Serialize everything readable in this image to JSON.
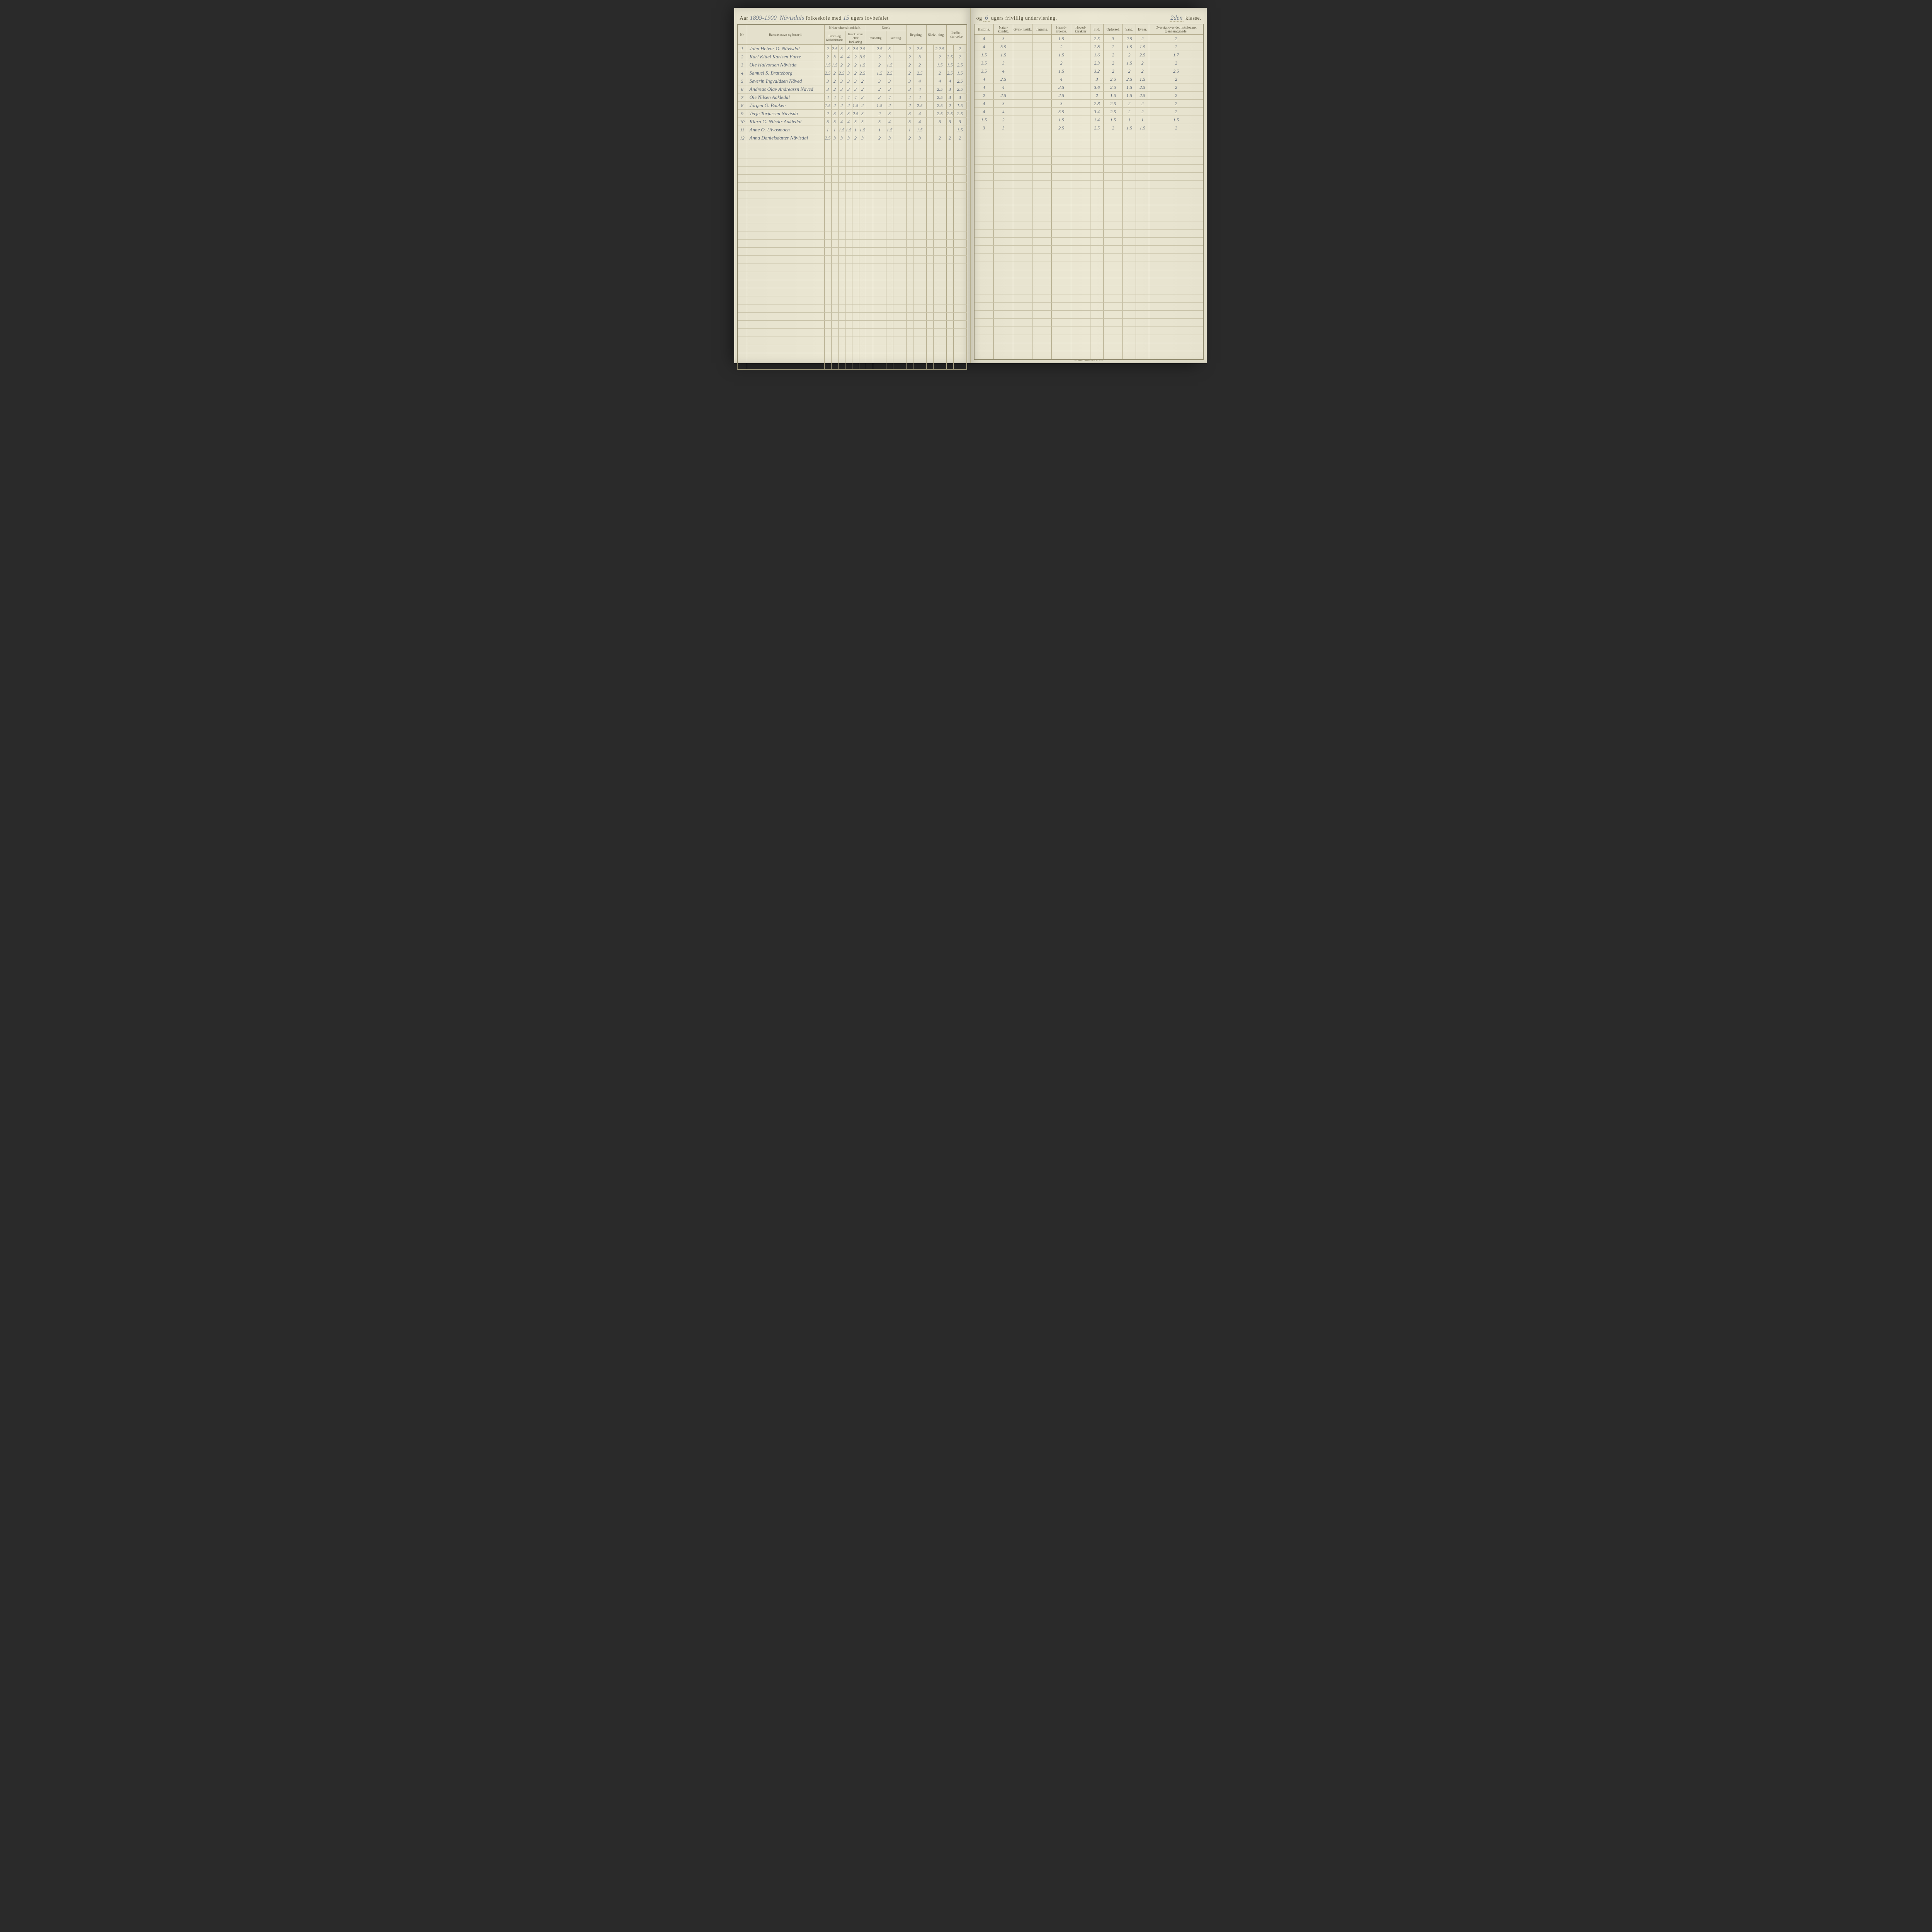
{
  "header": {
    "aar_label": "Aar",
    "aar_value": "1899-1900",
    "school_name": "Nävisdals",
    "line1_part1": "folkeskole med",
    "weeks_lov": "15",
    "line1_part2": "ugers lovbefalet",
    "line2_part1": "og",
    "weeks_friv": "6",
    "line2_part2": "ugers frivillig undervisning.",
    "klasse_num": "2den",
    "klasse_label": "klasse."
  },
  "columns_left": {
    "nr": "Nr.",
    "name": "Barnets navn og bosted.",
    "kristendom_group": "Kristendomskundskab.",
    "bibel": "Bibel- og Kirkehistorie",
    "katekismus": "Katekismus eller forklaring",
    "norsk_group": "Norsk",
    "mundtlig": "mundtlig.",
    "skriftlig": "skriftlig.",
    "regning": "Regning.",
    "skrivning": "Skriv-\nning.",
    "jordbesk": "Jordbe-\nskrivelse"
  },
  "columns_right": {
    "historie": "Historie.",
    "naturkundsk": "Natur-\nkundsk.",
    "gymnastik": "Gym-\nnastik.",
    "tegning": "Tegning.",
    "haandarb": "Haand-\narbeide.",
    "hovedkar": "Hoved-\nkarakter",
    "flid": "Flid.",
    "opforsel": "Opførsel.",
    "sang": "Sang.",
    "evner": "Evner.",
    "oversigt": "Oversigt over det i\nskoleaaret gjennemgaaede."
  },
  "rows": [
    {
      "nr": "1",
      "name": "John Helvor O. Nävisdal",
      "l": [
        "2",
        "2.5",
        "3",
        "3",
        "2.5",
        "2.5",
        "",
        "2.5",
        "3",
        "",
        "2",
        "2.5",
        "",
        "2.2.5",
        "",
        "2",
        "",
        "2.5"
      ],
      "r": [
        "4",
        "3",
        "",
        "",
        "1.5",
        "",
        "2.5",
        "3",
        "2.5",
        "2",
        "2",
        ""
      ]
    },
    {
      "nr": "2",
      "name": "Karl Kittel Karlsen Furre",
      "l": [
        "2",
        "3",
        "4",
        "4",
        "2",
        "3.5",
        "",
        "2",
        "3",
        "",
        "2",
        "3",
        "",
        "2",
        "2.5",
        "2",
        "",
        "3"
      ],
      "r": [
        "4",
        "3.5",
        "",
        "",
        "2",
        "",
        "2.8",
        "2",
        "1.5",
        "1.5",
        "2",
        ""
      ]
    },
    {
      "nr": "3",
      "name": "Ole Halvorsen Nävisda",
      "l": [
        "1.5",
        "1.5",
        "2",
        "2",
        "2",
        "1.5",
        "",
        "2",
        "1.5",
        "",
        "2",
        "2",
        "",
        "1.5",
        "1.5",
        "2.5",
        "",
        "1.5"
      ],
      "r": [
        "1.5",
        "1.5",
        "",
        "",
        "1.5",
        "",
        "1.6",
        "2",
        "2",
        "2.5",
        "1.7",
        ""
      ]
    },
    {
      "nr": "4",
      "name": "Samuel S. Bratteborg",
      "l": [
        "2.5",
        "2",
        "2.5",
        "3",
        "2",
        "2.5",
        "",
        "1.5",
        "2.5",
        "",
        "2",
        "2.5",
        "",
        "2",
        "2.5",
        "1.5",
        "",
        "2.5"
      ],
      "r": [
        "3.5",
        "3",
        "",
        "",
        "2",
        "",
        "2.3",
        "2",
        "1.5",
        "2",
        "2",
        ""
      ]
    },
    {
      "nr": "5",
      "name": "Severin Ingvaldsen Näved",
      "l": [
        "3",
        "2",
        "3",
        "3",
        "3",
        "2",
        "",
        "3",
        "3",
        "",
        "3",
        "4",
        "",
        "4",
        "4",
        "2.5",
        "",
        "3"
      ],
      "r": [
        "3.5",
        "4",
        "",
        "",
        "1.5",
        "",
        "3.2",
        "2",
        "2",
        "2",
        "2.5",
        ""
      ]
    },
    {
      "nr": "6",
      "name": "Andreas Olav Andreassn Näved",
      "l": [
        "3",
        "2",
        "3",
        "3",
        "3",
        "2",
        "",
        "2",
        "3",
        "",
        "3",
        "4",
        "",
        "2.5",
        "3",
        "2.5",
        "",
        "3"
      ],
      "r": [
        "4",
        "2.5",
        "",
        "",
        "4",
        "",
        "3",
        "2.5",
        "2.5",
        "1.5",
        "2",
        ""
      ]
    },
    {
      "nr": "7",
      "name": "Ole Nilsen Aakledal",
      "l": [
        "4",
        "4",
        "4",
        "4",
        "4",
        "3",
        "",
        "3",
        "4",
        "",
        "4",
        "4",
        "",
        "2.5",
        "3",
        "3",
        "",
        "3"
      ],
      "r": [
        "4",
        "4",
        "",
        "",
        "3.5",
        "",
        "3.6",
        "2.5",
        "1.5",
        "2.5",
        "2",
        ""
      ]
    },
    {
      "nr": "8",
      "name": "Jörgen G. Bauken",
      "l": [
        "1.5",
        "2",
        "2",
        "2",
        "1.5",
        "2",
        "",
        "1.5",
        "2",
        "",
        "2",
        "2.5",
        "",
        "2.5",
        "2",
        "1.5",
        "",
        "2"
      ],
      "r": [
        "2",
        "2.5",
        "",
        "",
        "2.5",
        "",
        "2",
        "1.5",
        "1.5",
        "2.5",
        "2",
        ""
      ]
    },
    {
      "nr": "9",
      "name": "Terje Torjussen Nävisda",
      "l": [
        "2",
        "3",
        "3",
        "3",
        "2.5",
        "3",
        "",
        "2",
        "3",
        "",
        "3",
        "4",
        "",
        "2.5",
        "2.5",
        "2.5",
        "",
        "3"
      ],
      "r": [
        "4",
        "3",
        "",
        "",
        "3",
        "",
        "2.8",
        "2.5",
        "2",
        "2",
        "2",
        ""
      ]
    },
    {
      "nr": "10",
      "name": "Klara G. Nilsdtr Aakledal",
      "l": [
        "3",
        "3",
        "4",
        "4",
        "3",
        "3",
        "",
        "3",
        "4",
        "",
        "3",
        "4",
        "",
        "3",
        "3",
        "3",
        "",
        "4"
      ],
      "r": [
        "4",
        "4",
        "",
        "",
        "3.5",
        "",
        "3.4",
        "2.5",
        "2",
        "2",
        "2",
        ""
      ]
    },
    {
      "nr": "11",
      "name": "Anne O. Ulvosmoen",
      "l": [
        "1",
        "1",
        "1.5",
        "1.5",
        "1",
        "1.5",
        "",
        "1",
        "1.5",
        "",
        "1",
        "1.5",
        "",
        "",
        "",
        "1.5",
        "",
        "1.5"
      ],
      "r": [
        "1.5",
        "2",
        "",
        "",
        "1.5",
        "",
        "1.4",
        "1.5",
        "1",
        "1",
        "1.5",
        ""
      ]
    },
    {
      "nr": "12",
      "name": "Anna Danielsdatter Nävisdal",
      "l": [
        "2.5",
        "3",
        "3",
        "3",
        "2",
        "3",
        "",
        "2",
        "3",
        "",
        "2",
        "3",
        "",
        "2",
        "2",
        "2",
        "",
        "2.5"
      ],
      "r": [
        "3",
        "3",
        "",
        "",
        "2.5",
        "",
        "2.5",
        "2",
        "1.5",
        "1.5",
        "2",
        ""
      ]
    }
  ],
  "empty_row_count": 28,
  "footer": "E. Sem. Frederik. - E. CB.",
  "colors": {
    "paper": "#e8e4d0",
    "ink_printed": "#5a5540",
    "ink_hand": "#5a6575",
    "rule": "#b0a888",
    "rule_dark": "#8a8468"
  }
}
